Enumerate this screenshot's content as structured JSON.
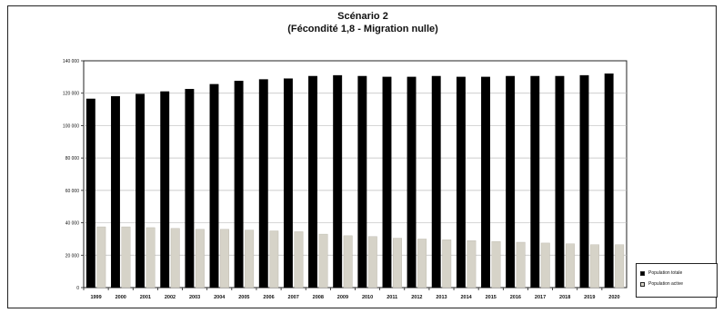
{
  "chart_data": {
    "type": "bar",
    "title": "Scénario 2",
    "subtitle": "(Fécondité 1,8 - Migration nulle)",
    "xlabel": "",
    "ylabel": "",
    "ylim": [
      0,
      140000
    ],
    "yticks": [
      0,
      20000,
      40000,
      60000,
      80000,
      100000,
      120000,
      140000
    ],
    "ytick_labels": [
      "0",
      "20 000",
      "40 000",
      "60 000",
      "80 000",
      "100 000",
      "120 000",
      "140 000"
    ],
    "grid": true,
    "legend_position": "bottom-right",
    "categories": [
      "1999",
      "2000",
      "2001",
      "2002",
      "2003",
      "2004",
      "2005",
      "2006",
      "2007",
      "2008",
      "2009",
      "2010",
      "2011",
      "2012",
      "2013",
      "2014",
      "2015",
      "2016",
      "2017",
      "2018",
      "2019",
      "2020"
    ],
    "series": [
      {
        "name": "Population totale",
        "color": "#000000",
        "values": [
          116500,
          118000,
          119500,
          121000,
          122500,
          125500,
          127500,
          128500,
          129000,
          130500,
          131000,
          130500,
          130000,
          130000,
          130500,
          130000,
          130000,
          130500,
          130500,
          130500,
          131000,
          132000
        ]
      },
      {
        "name": "Population active",
        "color": "#d6d3c8",
        "values": [
          37500,
          37500,
          37000,
          36500,
          36000,
          36000,
          35500,
          35000,
          34500,
          33000,
          32000,
          31500,
          30500,
          30000,
          29500,
          29000,
          28500,
          28000,
          27500,
          27000,
          26500,
          26500
        ]
      }
    ]
  }
}
